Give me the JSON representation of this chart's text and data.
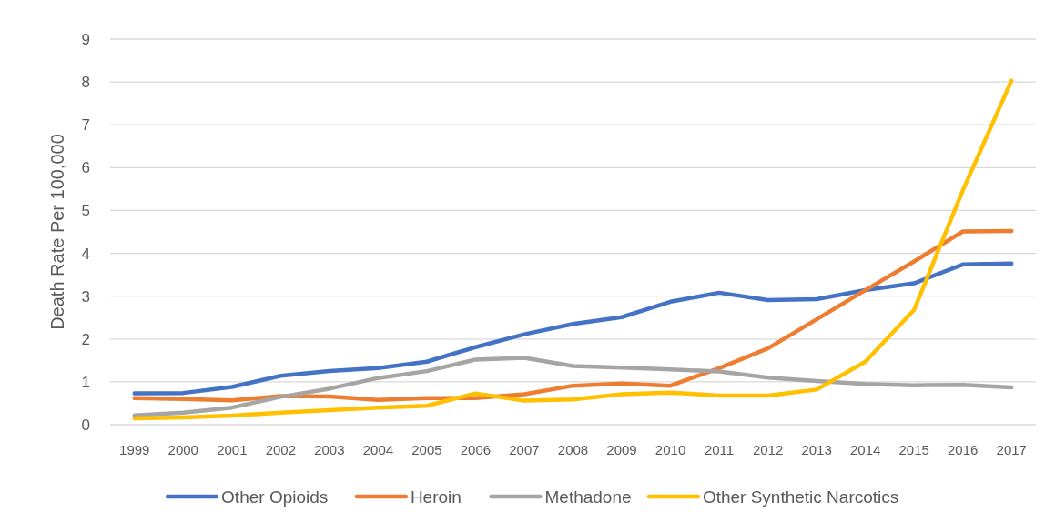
{
  "chart_data": {
    "type": "line",
    "ylabel": "Death Rate Per 100,000",
    "categories": [
      "1999",
      "2000",
      "2001",
      "2002",
      "2003",
      "2004",
      "2005",
      "2006",
      "2007",
      "2008",
      "2009",
      "2010",
      "2011",
      "2012",
      "2013",
      "2014",
      "2015",
      "2016",
      "2017"
    ],
    "series": [
      {
        "name": "Other Opioids",
        "color": "#4472c4",
        "values": [
          0.73,
          0.74,
          0.88,
          1.14,
          1.25,
          1.32,
          1.47,
          1.81,
          2.11,
          2.35,
          2.51,
          2.87,
          3.08,
          2.91,
          2.93,
          3.14,
          3.3,
          3.74,
          3.76
        ]
      },
      {
        "name": "Heroin",
        "color": "#ed7d31",
        "values": [
          0.62,
          0.6,
          0.57,
          0.67,
          0.66,
          0.58,
          0.62,
          0.62,
          0.71,
          0.91,
          0.96,
          0.91,
          1.32,
          1.78,
          2.46,
          3.14,
          3.81,
          4.51,
          4.52
        ]
      },
      {
        "name": "Methadone",
        "color": "#a5a5a5",
        "values": [
          0.22,
          0.28,
          0.4,
          0.65,
          0.84,
          1.09,
          1.25,
          1.52,
          1.56,
          1.37,
          1.33,
          1.29,
          1.24,
          1.1,
          1.02,
          0.95,
          0.92,
          0.93,
          0.87
        ]
      },
      {
        "name": "Other Synthetic Narcotics",
        "color": "#ffc000",
        "values": [
          0.15,
          0.17,
          0.21,
          0.28,
          0.34,
          0.4,
          0.44,
          0.73,
          0.56,
          0.59,
          0.71,
          0.75,
          0.68,
          0.68,
          0.82,
          1.47,
          2.68,
          5.47,
          8.03
        ]
      }
    ],
    "ylim": [
      0,
      9
    ],
    "yticks": [
      0,
      1,
      2,
      3,
      4,
      5,
      6,
      7,
      8,
      9
    ],
    "grid": "y",
    "legend": "bottom",
    "marker": "none",
    "line_style": "solid"
  }
}
